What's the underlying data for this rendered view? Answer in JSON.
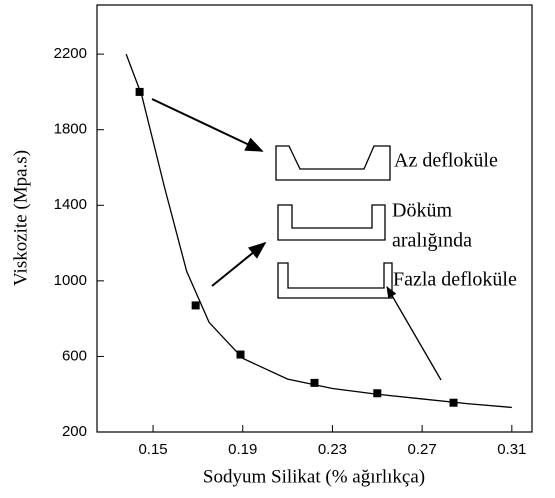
{
  "chart_data": {
    "type": "line",
    "xlabel": "Sodyum Silikat (% ağırlıkça)",
    "ylabel": "Viskozite (Mpa.s)",
    "xlim": [
      0.125,
      0.319
    ],
    "xticks": [
      0.15,
      0.19,
      0.23,
      0.27,
      0.31
    ],
    "ylim": [
      200,
      2460
    ],
    "yticks": [
      200,
      600,
      1000,
      1400,
      1800,
      2200
    ],
    "series": [
      {
        "color": "#000000",
        "marker": "square",
        "line": false,
        "x": [
          0.144,
          0.169,
          0.189,
          0.222,
          0.25,
          0.284
        ],
        "values": [
          2000,
          870,
          610,
          460,
          405,
          355
        ]
      },
      {
        "color": "#000000",
        "marker": "none",
        "line": true,
        "x": [
          0.138,
          0.145,
          0.155,
          0.165,
          0.175,
          0.19,
          0.21,
          0.23,
          0.25,
          0.27,
          0.29,
          0.31
        ],
        "values": [
          2200,
          1980,
          1500,
          1050,
          780,
          590,
          480,
          430,
          400,
          375,
          350,
          330
        ]
      }
    ],
    "annotations": [
      "Az defloküle",
      "Döküm",
      "aralığında",
      "Fazla defloküle"
    ]
  }
}
